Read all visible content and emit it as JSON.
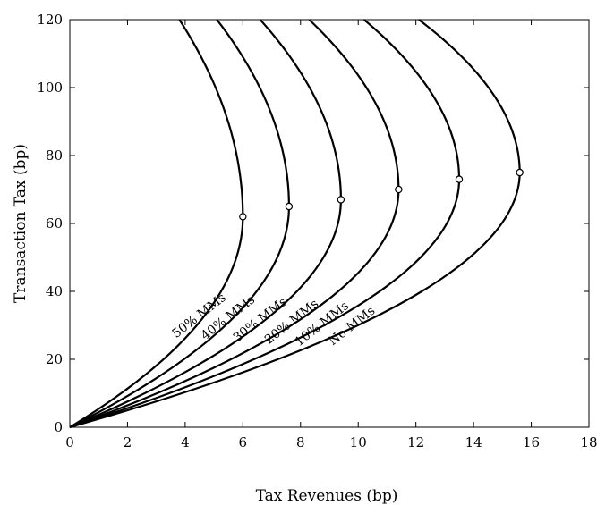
{
  "chart_data": {
    "type": "line",
    "title": "",
    "xlabel": "Tax Revenues (bp)",
    "ylabel": "Transaction Tax (bp)",
    "xlim": [
      0,
      18
    ],
    "ylim": [
      0,
      120
    ],
    "xticks": [
      0,
      2,
      4,
      6,
      8,
      10,
      12,
      14,
      16,
      18
    ],
    "yticks": [
      0,
      20,
      40,
      60,
      80,
      100,
      120
    ],
    "grid": false,
    "legend": "inline curve labels",
    "series": [
      {
        "name": "50% MMs",
        "peak": {
          "x": 6.0,
          "y": 62
        },
        "top_x": 3.8
      },
      {
        "name": "40% MMs",
        "peak": {
          "x": 7.6,
          "y": 65
        },
        "top_x": 5.1
      },
      {
        "name": "30% MMs",
        "peak": {
          "x": 9.4,
          "y": 67
        },
        "top_x": 6.6
      },
      {
        "name": "20% MMs",
        "peak": {
          "x": 11.4,
          "y": 70
        },
        "top_x": 8.3
      },
      {
        "name": "10% MMs",
        "peak": {
          "x": 13.5,
          "y": 73
        },
        "top_x": 10.2
      },
      {
        "name": "No MMs",
        "peak": {
          "x": 15.6,
          "y": 75
        },
        "top_x": 12.1
      }
    ]
  }
}
